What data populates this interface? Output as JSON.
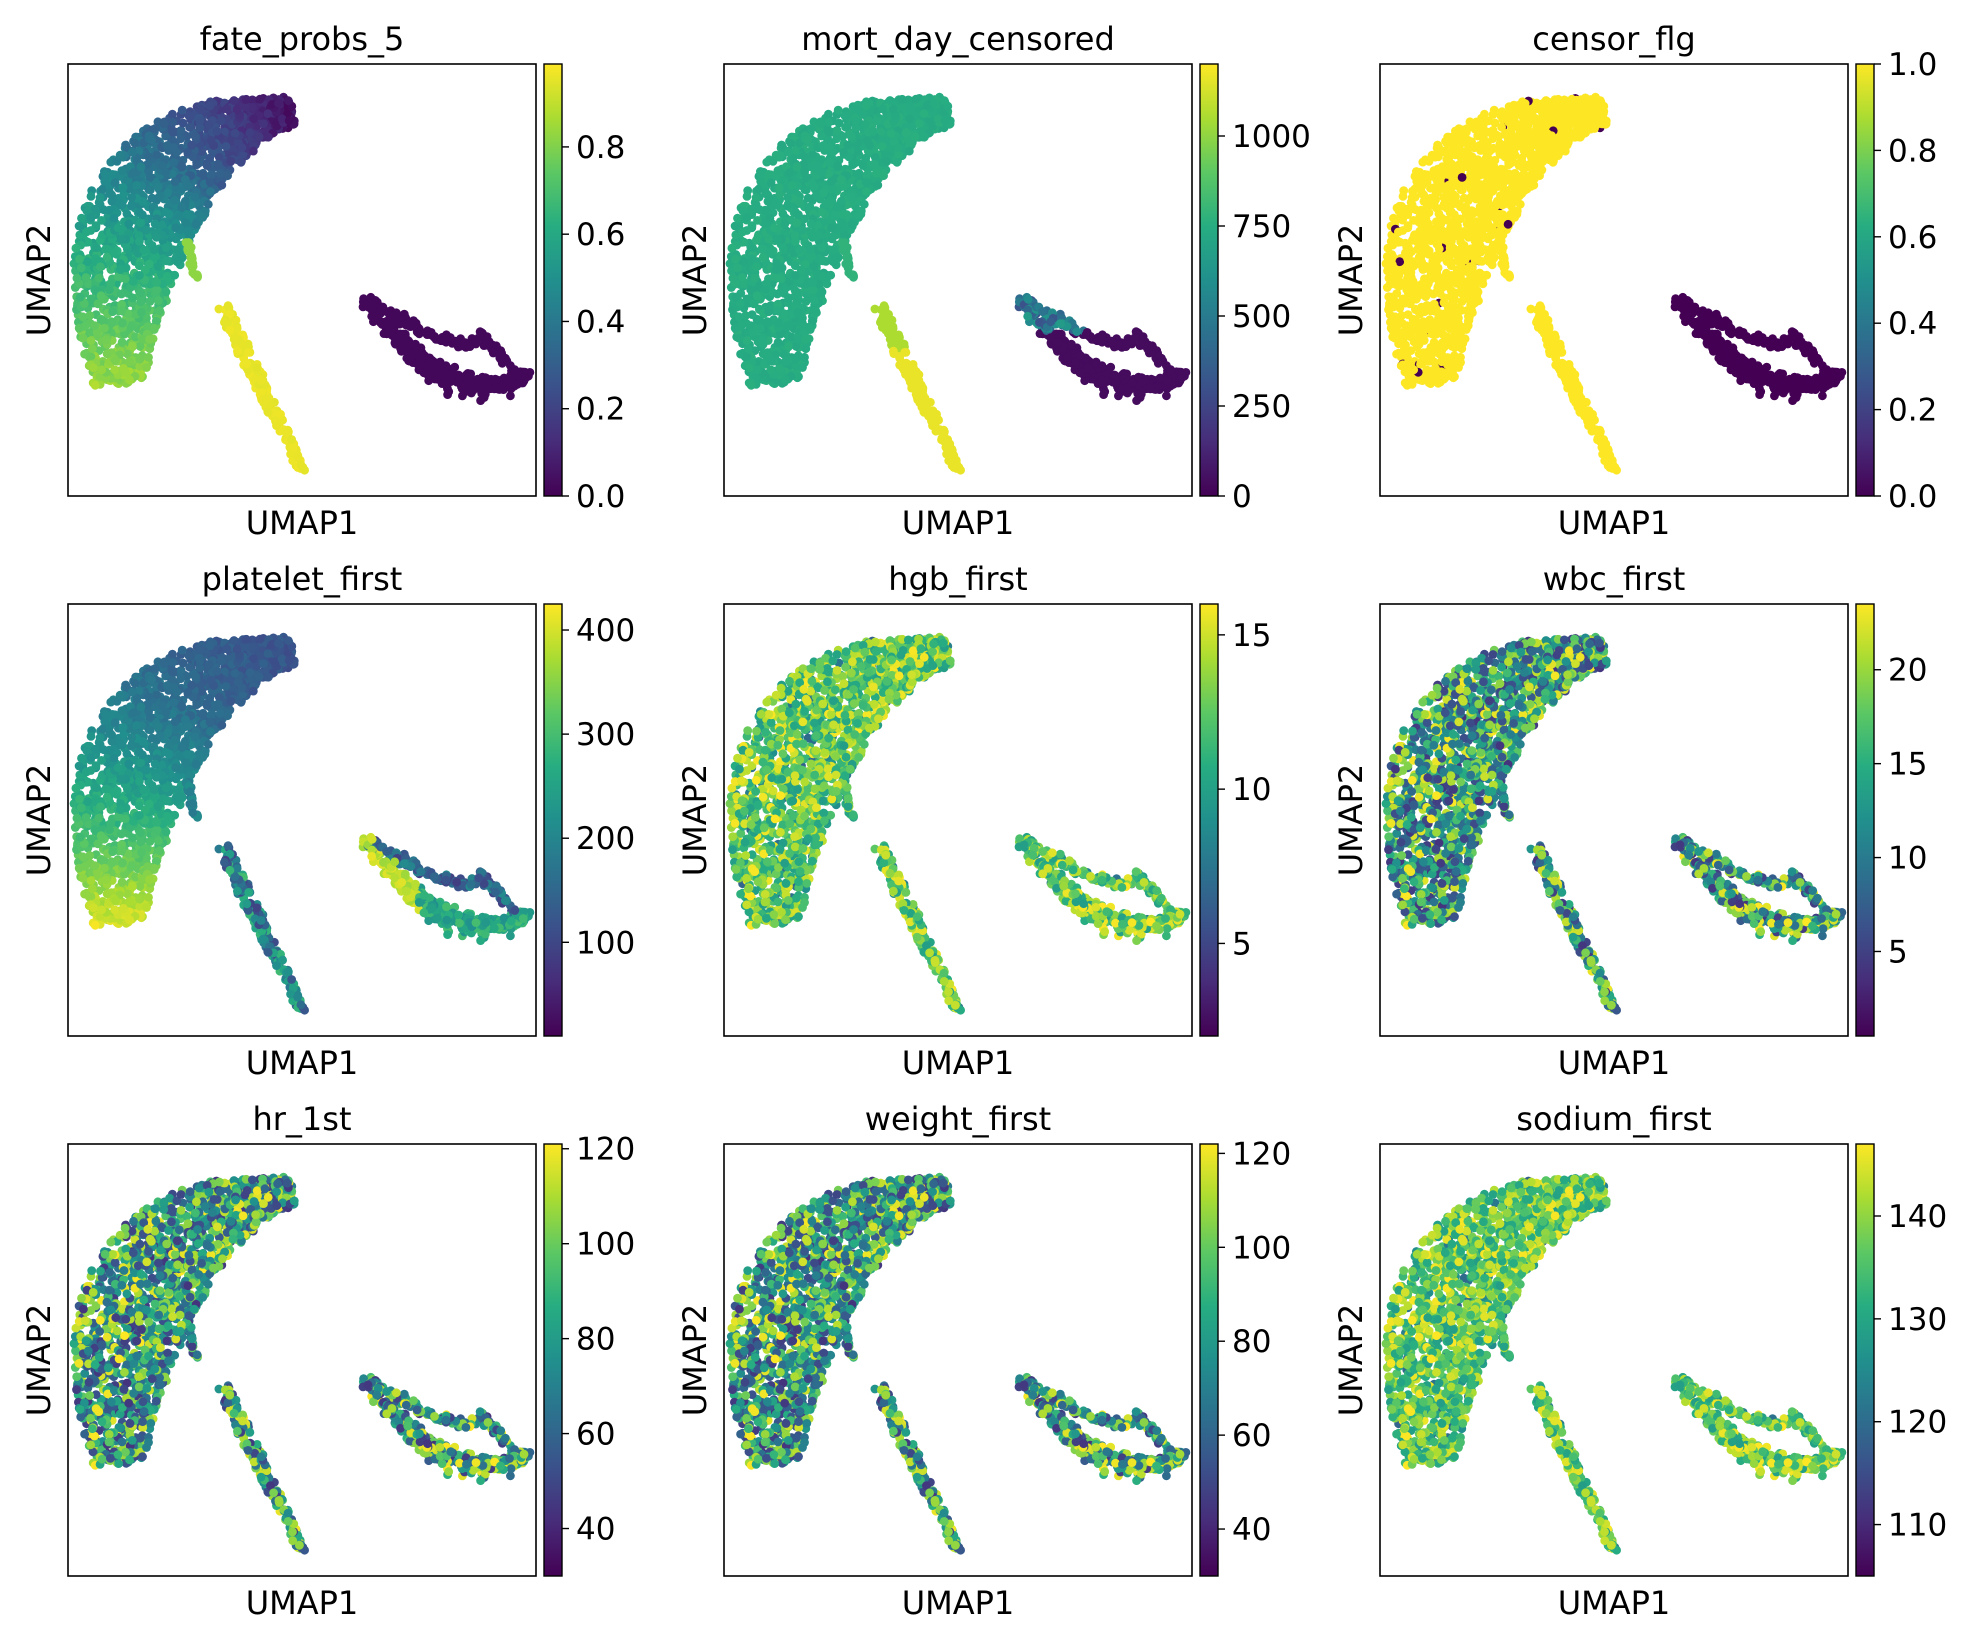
{
  "chart_data": [
    {
      "type": "scatter",
      "title": "fate_probs_5",
      "xlabel": "UMAP1",
      "ylabel": "UMAP2",
      "color_mode": "fate",
      "colorbar": {
        "colormap": "viridis",
        "range": [
          0.0,
          0.99
        ],
        "ticks": [
          0.0,
          0.2,
          0.4,
          0.6,
          0.8
        ],
        "tick_labels": [
          "0.0",
          "0.2",
          "0.4",
          "0.6",
          "0.8"
        ]
      }
    },
    {
      "type": "scatter",
      "title": "mort_day_censored",
      "xlabel": "UMAP1",
      "ylabel": "UMAP2",
      "color_mode": "mort",
      "colorbar": {
        "colormap": "viridis",
        "range": [
          0,
          1200
        ],
        "ticks": [
          0,
          250,
          500,
          750,
          1000
        ],
        "tick_labels": [
          "0",
          "250",
          "500",
          "750",
          "1000"
        ]
      }
    },
    {
      "type": "scatter",
      "title": "censor_flg",
      "xlabel": "UMAP1",
      "ylabel": "UMAP2",
      "color_mode": "censor",
      "colorbar": {
        "colormap": "viridis",
        "range": [
          0.0,
          1.0
        ],
        "ticks": [
          0.0,
          0.2,
          0.4,
          0.6,
          0.8,
          1.0
        ],
        "tick_labels": [
          "0.0",
          "0.2",
          "0.4",
          "0.6",
          "0.8",
          "1.0"
        ]
      }
    },
    {
      "type": "scatter",
      "title": "platelet_first",
      "xlabel": "UMAP1",
      "ylabel": "UMAP2",
      "color_mode": "platelet",
      "colorbar": {
        "colormap": "viridis",
        "range": [
          10,
          425
        ],
        "ticks": [
          100,
          200,
          300,
          400
        ],
        "tick_labels": [
          "100",
          "200",
          "300",
          "400"
        ]
      }
    },
    {
      "type": "scatter",
      "title": "hgb_first",
      "xlabel": "UMAP1",
      "ylabel": "UMAP2",
      "color_mode": "noise_high",
      "colorbar": {
        "colormap": "viridis",
        "range": [
          2,
          16
        ],
        "ticks": [
          5,
          10,
          15
        ],
        "tick_labels": [
          "5",
          "10",
          "15"
        ]
      }
    },
    {
      "type": "scatter",
      "title": "wbc_first",
      "xlabel": "UMAP1",
      "ylabel": "UMAP2",
      "color_mode": "noise_mid",
      "colorbar": {
        "colormap": "viridis",
        "range": [
          0.5,
          23.5
        ],
        "ticks": [
          5,
          10,
          15,
          20
        ],
        "tick_labels": [
          "5",
          "10",
          "15",
          "20"
        ]
      }
    },
    {
      "type": "scatter",
      "title": "hr_1st",
      "xlabel": "UMAP1",
      "ylabel": "UMAP2",
      "color_mode": "noise_mid",
      "colorbar": {
        "colormap": "viridis",
        "range": [
          30,
          121
        ],
        "ticks": [
          40,
          60,
          80,
          100,
          120
        ],
        "tick_labels": [
          "40",
          "60",
          "80",
          "100",
          "120"
        ]
      }
    },
    {
      "type": "scatter",
      "title": "weight_first",
      "xlabel": "UMAP1",
      "ylabel": "UMAP2",
      "color_mode": "noise_mid",
      "colorbar": {
        "colormap": "viridis",
        "range": [
          30,
          122
        ],
        "ticks": [
          40,
          60,
          80,
          100,
          120
        ],
        "tick_labels": [
          "40",
          "60",
          "80",
          "100",
          "120"
        ]
      }
    },
    {
      "type": "scatter",
      "title": "sodium_first",
      "xlabel": "UMAP1",
      "ylabel": "UMAP2",
      "color_mode": "noise_high",
      "colorbar": {
        "colormap": "viridis",
        "range": [
          105,
          147
        ],
        "ticks": [
          110,
          120,
          130,
          140
        ],
        "tick_labels": [
          "110",
          "120",
          "130",
          "140"
        ]
      }
    }
  ]
}
